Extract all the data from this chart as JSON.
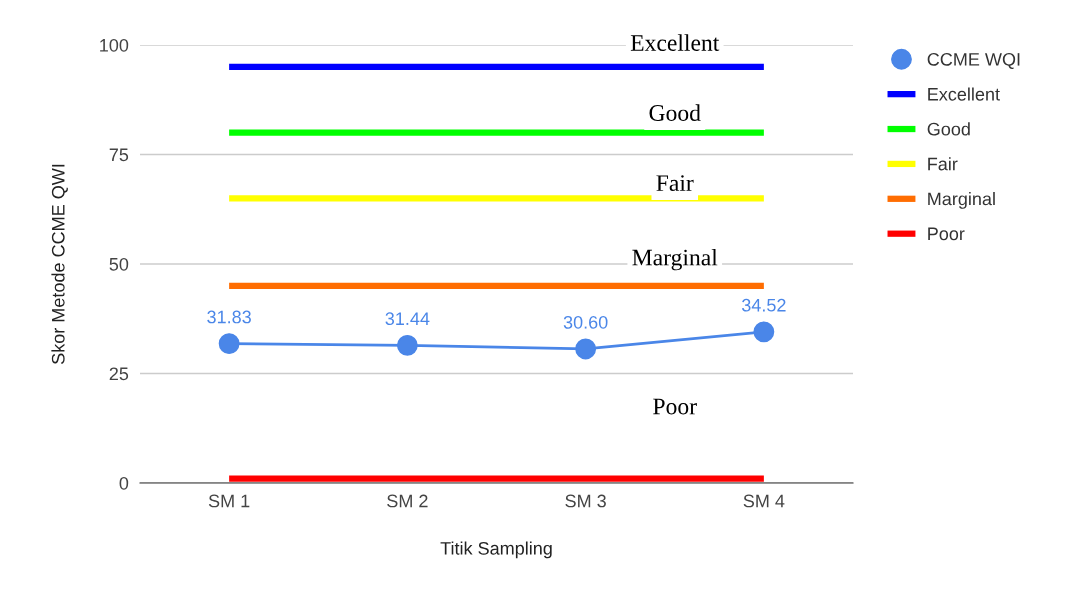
{
  "chart_data": {
    "type": "line",
    "xlabel": "Titik Sampling",
    "ylabel": "Skor Metode CCME QWI",
    "categories": [
      "SM 1",
      "SM 2",
      "SM 3",
      "SM 4"
    ],
    "series": [
      {
        "name": "CCME WQI",
        "color": "#4a86e8",
        "values": [
          31.83,
          31.44,
          30.6,
          34.52
        ],
        "marker": "circle",
        "value_labels": [
          "31.83",
          "31.44",
          "30.60",
          "34.52"
        ]
      },
      {
        "name": "Excellent",
        "color": "#0000ff",
        "values": [
          95,
          95,
          95,
          95
        ],
        "marker": "none"
      },
      {
        "name": "Good",
        "color": "#00ff00",
        "values": [
          80,
          80,
          80,
          80
        ],
        "marker": "none"
      },
      {
        "name": "Fair",
        "color": "#ffff00",
        "values": [
          65,
          65,
          65,
          65
        ],
        "marker": "none"
      },
      {
        "name": "Marginal",
        "color": "#ff6d01",
        "values": [
          45,
          45,
          45,
          45
        ],
        "marker": "none"
      },
      {
        "name": "Poor",
        "color": "#ff0000",
        "values": [
          1,
          1,
          1,
          1
        ],
        "marker": "none"
      }
    ],
    "annotations": [
      "Excellent",
      "Good",
      "Fair",
      "Marginal",
      "Poor"
    ],
    "ylim": [
      0,
      100
    ],
    "yticks": [
      0,
      25,
      50,
      75,
      100
    ],
    "grid": "y",
    "legend": "top right"
  }
}
